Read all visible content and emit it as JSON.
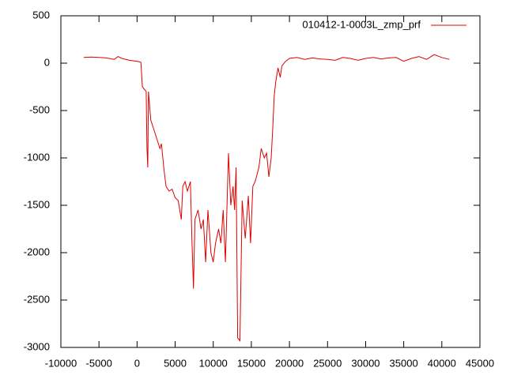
{
  "chart_data": {
    "type": "line",
    "x": [
      -7000,
      -6000,
      -5000,
      -4000,
      -3000,
      -2500,
      -2000,
      -1000,
      0,
      500,
      700,
      1000,
      1200,
      1300,
      1400,
      1500,
      1800,
      2200,
      2600,
      3000,
      3200,
      3500,
      3800,
      4200,
      4600,
      5000,
      5400,
      5800,
      6000,
      6300,
      6600,
      7000,
      7200,
      7400,
      7600,
      8000,
      8400,
      8700,
      9000,
      9300,
      9700,
      10000,
      10300,
      10700,
      11000,
      11300,
      11600,
      12000,
      12300,
      12600,
      12800,
      13000,
      13200,
      13500,
      13800,
      14200,
      14600,
      14900,
      15200,
      15500,
      16000,
      16300,
      16700,
      17000,
      17300,
      17600,
      17800,
      18000,
      18200,
      18500,
      18800,
      19000,
      19500,
      20000,
      21000,
      22000,
      23000,
      24000,
      25000,
      26000,
      27000,
      28000,
      29000,
      30000,
      31000,
      32000,
      33000,
      34000,
      35000,
      36000,
      37000,
      38000,
      39000,
      40000,
      41000
    ],
    "series": [
      {
        "name": "010412-1-0003L_zmp_prf",
        "color": "#dd0000",
        "values": [
          60,
          65,
          60,
          55,
          40,
          70,
          50,
          30,
          20,
          10,
          -250,
          -280,
          -300,
          -900,
          -1100,
          -300,
          -600,
          -700,
          -800,
          -900,
          -850,
          -1100,
          -1300,
          -1350,
          -1330,
          -1420,
          -1450,
          -1650,
          -1300,
          -1250,
          -1350,
          -1250,
          -1850,
          -2380,
          -1650,
          -1550,
          -1750,
          -1650,
          -2100,
          -1550,
          -2000,
          -2100,
          -1900,
          -1750,
          -1900,
          -1550,
          -2100,
          -950,
          -1500,
          -1300,
          -1550,
          -1100,
          -2900,
          -2930,
          -1450,
          -1850,
          -1400,
          -1900,
          -1300,
          -1250,
          -1100,
          -900,
          -1000,
          -950,
          -1200,
          -1000,
          -700,
          -350,
          -200,
          -50,
          -150,
          -30,
          20,
          50,
          60,
          40,
          55,
          45,
          40,
          30,
          60,
          50,
          30,
          50,
          60,
          45,
          55,
          60,
          20,
          50,
          70,
          40,
          90,
          60,
          40
        ]
      }
    ],
    "xlim": [
      -10000,
      45000
    ],
    "xticks": [
      -10000,
      -5000,
      0,
      5000,
      10000,
      15000,
      20000,
      25000,
      30000,
      35000,
      40000,
      45000
    ],
    "ylim": [
      -3000,
      500
    ],
    "yticks": [
      -3000,
      -2500,
      -2000,
      -1500,
      -1000,
      -500,
      0,
      500
    ]
  }
}
